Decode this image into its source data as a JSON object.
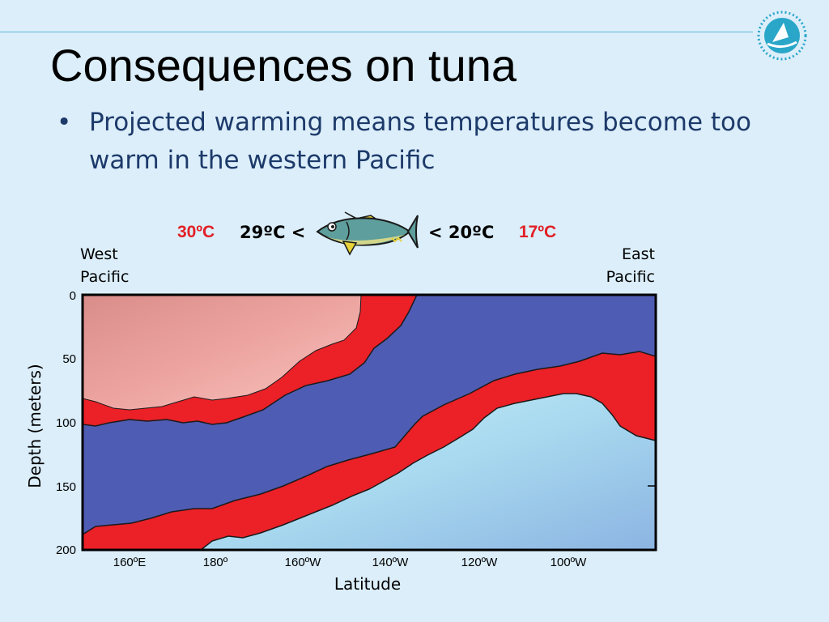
{
  "slide": {
    "title": "Consequences on tuna",
    "bullets": [
      "Projected warming means temperatures become too warm in the western Pacific"
    ]
  },
  "figure": {
    "temp_far_left": "30ºC",
    "temp_near_left": "29ºC <",
    "temp_near_right": "< 20ºC",
    "temp_far_right": "17ºC",
    "west_line1": "West",
    "west_line2": "Pacific",
    "east_line1": "East",
    "east_line2": "Pacific",
    "y_axis_label": "Depth (meters)",
    "x_axis_label": "Latitude",
    "depth_ticks": [
      "0",
      "50",
      "100",
      "150",
      "200"
    ],
    "lon_ticks": [
      "160ºE",
      "180º",
      "160ºW",
      "140ºW",
      "120ºW",
      "100ºW"
    ]
  },
  "colors": {
    "warm_core": "#f4b5b0",
    "band_red": "#ec2027",
    "mid_blue": "#4f5cb3",
    "cool_cyan": "#a9def0",
    "label_red": "#e21f26"
  },
  "icons": {
    "logo": "pacific-community-logo-icon",
    "fish": "tuna-fish-icon"
  }
}
